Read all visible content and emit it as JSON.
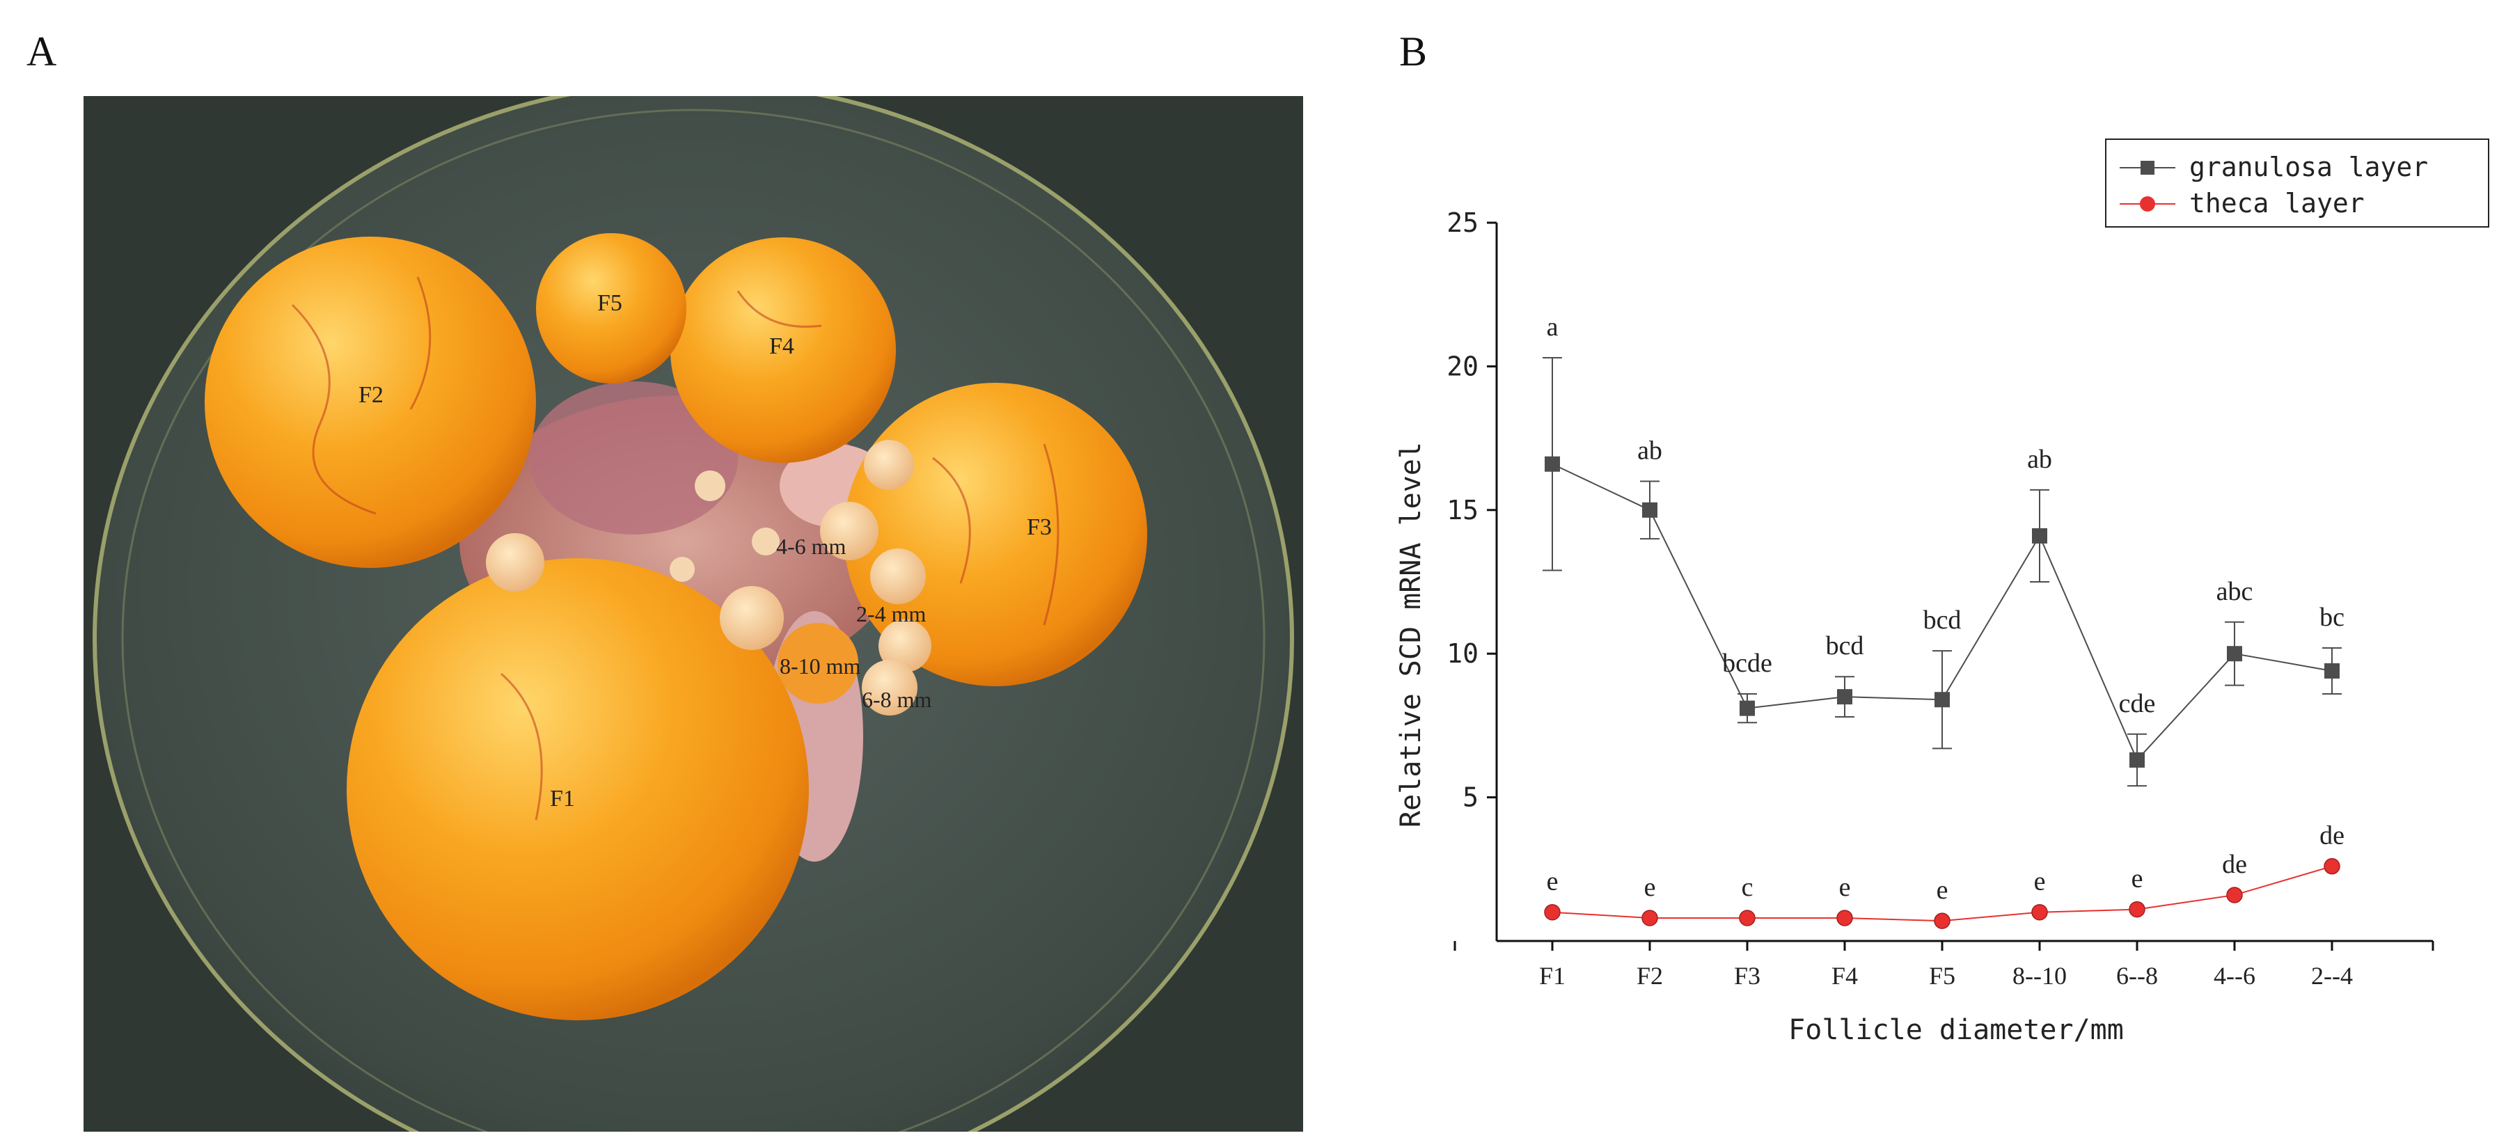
{
  "panel_a": {
    "label": "A",
    "follicle_labels": [
      "F1",
      "F2",
      "F3",
      "F4",
      "F5"
    ],
    "size_labels": [
      "4-6 mm",
      "2-4 mm",
      "8-10 mm",
      "6-8 mm"
    ],
    "colors": {
      "yolk": "#f7a21e",
      "yolk_light": "#ffd66b",
      "dish": "#3f4a45"
    }
  },
  "panel_b": {
    "label": "B"
  },
  "chart_data": {
    "type": "line",
    "categories": [
      "F1",
      "F2",
      "F3",
      "F4",
      "F5",
      "8--10",
      "6--8",
      "4--6",
      "2--4"
    ],
    "xlabel": "Follicle diameter/mm",
    "ylabel": "Relative SCD mRNA level",
    "ylim": [
      0,
      25
    ],
    "yticks": [
      5,
      10,
      15,
      20,
      25
    ],
    "legend_position": "top-right",
    "grid": false,
    "series": [
      {
        "name": "granulosa layer",
        "color": "#4d4d4d",
        "marker": "square",
        "values": [
          16.6,
          15.0,
          8.1,
          8.5,
          8.4,
          14.1,
          6.3,
          10.0,
          9.4
        ],
        "errors": [
          3.7,
          1.0,
          0.5,
          0.7,
          1.7,
          1.6,
          0.9,
          1.1,
          0.8
        ],
        "letters": [
          "a",
          "ab",
          "bcde",
          "bcd",
          "bcd",
          "ab",
          "cde",
          "abc",
          "bc"
        ]
      },
      {
        "name": "theca layer",
        "color": "#e8312f",
        "marker": "circle",
        "values": [
          1.0,
          0.8,
          0.8,
          0.8,
          0.7,
          1.0,
          1.1,
          1.6,
          2.6
        ],
        "errors": [
          0,
          0,
          0,
          0,
          0,
          0,
          0,
          0,
          0
        ],
        "letters": [
          "e",
          "e",
          "c",
          "e",
          "e",
          "e",
          "e",
          "de",
          "de"
        ]
      }
    ]
  }
}
